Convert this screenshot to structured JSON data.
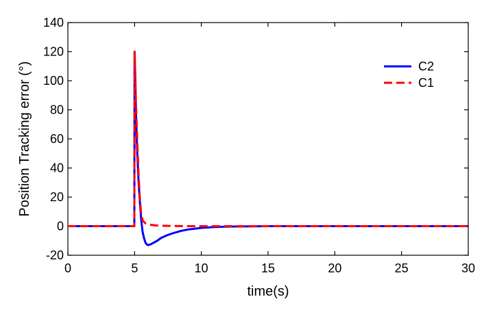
{
  "chart_data": {
    "type": "line",
    "title": "",
    "xlabel": "time(s)",
    "ylabel": "Position Tracking error (°)",
    "xlim": [
      0,
      30
    ],
    "ylim": [
      -20,
      140
    ],
    "xticks": [
      0,
      5,
      10,
      15,
      20,
      25,
      30
    ],
    "yticks": [
      -20,
      0,
      20,
      40,
      60,
      80,
      100,
      120,
      140
    ],
    "grid": false,
    "legend_position": "top-right",
    "series": [
      {
        "name": "C2",
        "color": "#0000ff",
        "style": "solid",
        "x": [
          0,
          4.98,
          5.0,
          5.05,
          5.1,
          5.2,
          5.3,
          5.4,
          5.5,
          5.6,
          5.7,
          5.8,
          5.9,
          6.0,
          6.2,
          6.4,
          6.7,
          7.0,
          7.5,
          8.0,
          8.5,
          9.0,
          10.0,
          11.0,
          12.0,
          15.0,
          20.0,
          25.0,
          30.0
        ],
        "y": [
          0,
          0,
          120,
          100,
          78,
          50,
          30,
          16,
          4,
          -4,
          -8,
          -11,
          -12.5,
          -13,
          -12.5,
          -11.5,
          -10,
          -8,
          -6,
          -4.5,
          -3.2,
          -2.3,
          -1.2,
          -0.6,
          -0.3,
          0,
          0,
          0,
          0
        ]
      },
      {
        "name": "C1",
        "color": "#ff0000",
        "style": "dashed",
        "x": [
          0,
          4.98,
          5.0,
          5.05,
          5.1,
          5.2,
          5.3,
          5.4,
          5.5,
          5.6,
          5.8,
          6.0,
          6.5,
          7.0,
          8.0,
          10.0,
          15.0,
          20.0,
          25.0,
          30.0
        ],
        "y": [
          0,
          0,
          120,
          105,
          85,
          58,
          35,
          18,
          8,
          4,
          2,
          1.2,
          0.6,
          0.3,
          0.1,
          0,
          0,
          0,
          0,
          0
        ]
      }
    ]
  }
}
